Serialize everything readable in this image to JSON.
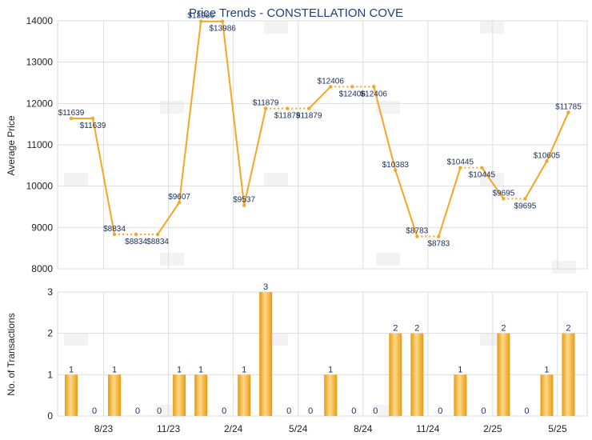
{
  "chart_data": [
    {
      "type": "line",
      "title": "Price Trends - CONSTELLATION COVE",
      "ylabel": "Average Price",
      "ylim": [
        8000,
        14000
      ],
      "yticks": [
        8000,
        9000,
        10000,
        11000,
        12000,
        13000,
        14000
      ],
      "grid": true,
      "color": "#f5a623",
      "points": [
        {
          "x": 1,
          "y": 11639,
          "label": "$11639",
          "solid": false
        },
        {
          "x": 2,
          "y": 11639,
          "label": "$11639",
          "solid": true
        },
        {
          "x": 3,
          "y": 8834,
          "label": "$8834",
          "solid": true
        },
        {
          "x": 4,
          "y": 8834,
          "label": "$8834",
          "solid": false
        },
        {
          "x": 5,
          "y": 8834,
          "label": "$8834",
          "solid": false
        },
        {
          "x": 6,
          "y": 9607,
          "label": "$9607",
          "solid": true
        },
        {
          "x": 7,
          "y": 13986,
          "label": "$13986",
          "solid": true
        },
        {
          "x": 8,
          "y": 13986,
          "label": "$13986",
          "solid": true
        },
        {
          "x": 9,
          "y": 9537,
          "label": "$9537",
          "solid": true
        },
        {
          "x": 10,
          "y": 11879,
          "label": "$11879",
          "solid": true
        },
        {
          "x": 11,
          "y": 11879,
          "label": "$11879",
          "solid": false
        },
        {
          "x": 12,
          "y": 11879,
          "label": "$11879",
          "solid": false
        },
        {
          "x": 13,
          "y": 12406,
          "label": "$12406",
          "solid": true
        },
        {
          "x": 14,
          "y": 12406,
          "label": "$12406",
          "solid": false
        },
        {
          "x": 15,
          "y": 12406,
          "label": "$12406",
          "solid": false
        },
        {
          "x": 16,
          "y": 10383,
          "label": "$10383",
          "solid": true
        },
        {
          "x": 17,
          "y": 8783,
          "label": "$8783",
          "solid": true
        },
        {
          "x": 18,
          "y": 8783,
          "label": "$8783",
          "solid": false
        },
        {
          "x": 19,
          "y": 10445,
          "label": "$10445",
          "solid": true
        },
        {
          "x": 20,
          "y": 10445,
          "label": "$10445",
          "solid": false
        },
        {
          "x": 21,
          "y": 9695,
          "label": "$9695",
          "solid": true
        },
        {
          "x": 22,
          "y": 9695,
          "label": "$9695",
          "solid": false
        },
        {
          "x": 23,
          "y": 10605,
          "label": "$10605",
          "solid": true
        },
        {
          "x": 24,
          "y": 11785,
          "label": "$11785",
          "solid": true
        }
      ]
    },
    {
      "type": "bar",
      "ylabel": "No. of Transactions",
      "ylim": [
        0,
        3
      ],
      "yticks": [
        0,
        1,
        2,
        3
      ],
      "grid": true,
      "color": "#f5a623",
      "values": [
        1,
        0,
        1,
        0,
        0,
        1,
        1,
        0,
        1,
        3,
        0,
        0,
        1,
        0,
        0,
        2,
        2,
        0,
        1,
        0,
        2,
        0,
        1,
        2
      ],
      "xtick_labels": [
        {
          "index": 3,
          "label": "8/23"
        },
        {
          "index": 6,
          "label": "11/23"
        },
        {
          "index": 9,
          "label": "2/24"
        },
        {
          "index": 12,
          "label": "5/24"
        },
        {
          "index": 15,
          "label": "8/24"
        },
        {
          "index": 18,
          "label": "11/24"
        },
        {
          "index": 21,
          "label": "2/25"
        },
        {
          "index": 24,
          "label": "5/25"
        }
      ]
    }
  ]
}
